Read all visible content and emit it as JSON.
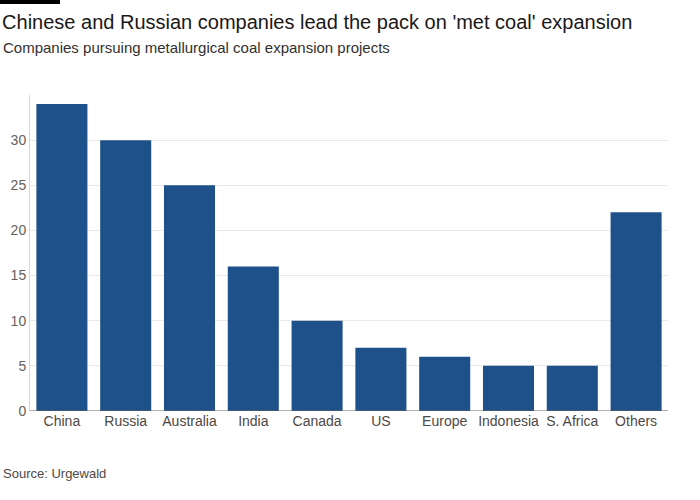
{
  "chart_data": {
    "type": "bar",
    "title": "Chinese and Russian companies lead the pack on 'met coal' expansion",
    "subtitle": "Companies pursuing metallurgical coal expansion projects",
    "source": "Source: Urgewald",
    "categories": [
      "China",
      "Russia",
      "Australia",
      "India",
      "Canada",
      "US",
      "Europe",
      "Indonesia",
      "S. Africa",
      "Others"
    ],
    "values": [
      34,
      30,
      25,
      16,
      10,
      7,
      6,
      5,
      5,
      22
    ],
    "color": "#1e518a",
    "ylim": [
      0,
      35
    ],
    "yticks": [
      0,
      5,
      10,
      15,
      20,
      25,
      30
    ],
    "grid": true
  }
}
